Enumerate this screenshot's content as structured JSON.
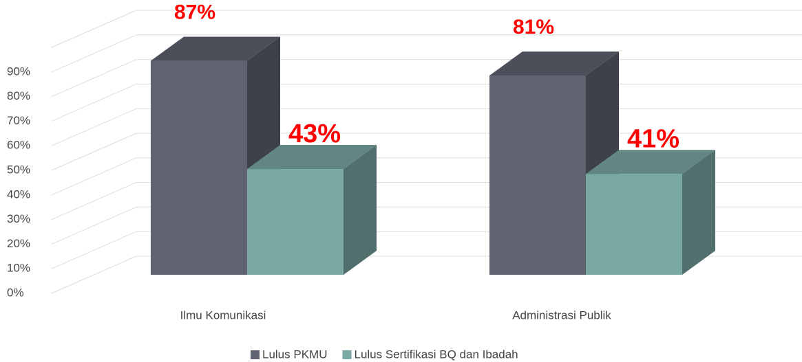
{
  "chart_data": {
    "type": "bar3d",
    "categories": [
      "Ilmu Komunikasi",
      "Administrasi Publik"
    ],
    "series": [
      {
        "name": "Lulus PKMU",
        "color": "#5f6270",
        "values": [
          87,
          81
        ],
        "value_labels": [
          "87%",
          "81%"
        ]
      },
      {
        "name": "Lulus Sertifikasi BQ dan Ibadah",
        "color": "#7aa8a3",
        "values": [
          43,
          41
        ],
        "value_labels": [
          "43%",
          "41%"
        ]
      }
    ],
    "ylim": [
      0,
      100
    ],
    "yticks": [
      {
        "value": 0,
        "label": "0%"
      },
      {
        "value": 10,
        "label": "10%"
      },
      {
        "value": 20,
        "label": "20%"
      },
      {
        "value": 30,
        "label": "30%"
      },
      {
        "value": 40,
        "label": "40%"
      },
      {
        "value": 50,
        "label": "50%"
      },
      {
        "value": 60,
        "label": "60%"
      },
      {
        "value": 70,
        "label": "70%"
      },
      {
        "value": 80,
        "label": "80%"
      },
      {
        "value": 90,
        "label": "90%"
      }
    ],
    "grid": true,
    "legend": "bottom"
  }
}
